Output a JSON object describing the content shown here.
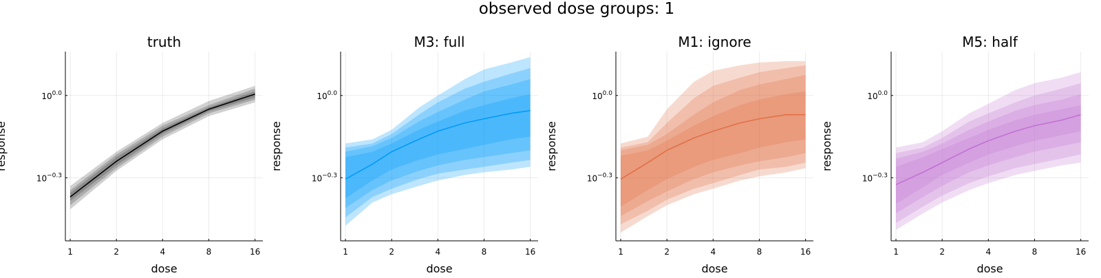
{
  "figure": {
    "suptitle": "observed dose groups: 1"
  },
  "chart_data": [
    {
      "type": "area",
      "title": "truth",
      "xlabel": "dose",
      "ylabel": "response",
      "xscale": "log2",
      "yscale": "log10",
      "x_ticks": [
        1,
        2,
        4,
        8,
        16
      ],
      "x_tick_labels": [
        "1",
        "2",
        "4",
        "8",
        "16"
      ],
      "y_ticks": [
        -0.3,
        0.0
      ],
      "y_tick_labels": [
        {
          "base": "10",
          "exp": "−0.3"
        },
        {
          "base": "10",
          "exp": "0.0"
        }
      ],
      "xlim": [
        0.93,
        18
      ],
      "ylim_log10": [
        -0.53,
        0.16
      ],
      "color": "#000000",
      "band_opacity": 0.18,
      "x": [
        1,
        2,
        4,
        8,
        16
      ],
      "median_log10": [
        -0.37,
        -0.24,
        -0.13,
        -0.05,
        0.005
      ],
      "bands_log10": [
        {
          "lower": [
            -0.415,
            -0.275,
            -0.16,
            -0.075,
            -0.025
          ],
          "upper": [
            -0.33,
            -0.205,
            -0.1,
            -0.02,
            0.035
          ]
        },
        {
          "lower": [
            -0.4,
            -0.265,
            -0.15,
            -0.065,
            -0.015
          ],
          "upper": [
            -0.345,
            -0.215,
            -0.11,
            -0.035,
            0.025
          ]
        },
        {
          "lower": [
            -0.385,
            -0.255,
            -0.14,
            -0.058,
            -0.007
          ],
          "upper": [
            -0.355,
            -0.225,
            -0.12,
            -0.043,
            0.015
          ]
        }
      ]
    },
    {
      "type": "area",
      "title": "M3: full",
      "xlabel": "dose",
      "ylabel": "response",
      "xscale": "log2",
      "yscale": "log10",
      "x_ticks": [
        1,
        2,
        4,
        8,
        16
      ],
      "x_tick_labels": [
        "1",
        "2",
        "4",
        "8",
        "16"
      ],
      "y_ticks": [
        -0.3,
        0.0
      ],
      "y_tick_labels": [
        {
          "base": "10",
          "exp": "−0.3"
        },
        {
          "base": "10",
          "exp": "0.0"
        }
      ],
      "xlim": [
        0.93,
        18
      ],
      "ylim_log10": [
        -0.53,
        0.16
      ],
      "color": "#009afa",
      "band_opacity": 0.26,
      "x": [
        1,
        1.5,
        2,
        3,
        4,
        6,
        8,
        12,
        16
      ],
      "median_log10": [
        -0.305,
        -0.25,
        -0.205,
        -0.16,
        -0.13,
        -0.1,
        -0.085,
        -0.065,
        -0.055
      ],
      "bands_log10": [
        {
          "lower": [
            -0.475,
            -0.39,
            -0.36,
            -0.33,
            -0.31,
            -0.29,
            -0.28,
            -0.27,
            -0.26
          ],
          "upper": [
            -0.175,
            -0.16,
            -0.125,
            -0.045,
            0.0,
            0.06,
            0.095,
            0.12,
            0.14
          ]
        },
        {
          "lower": [
            -0.445,
            -0.37,
            -0.34,
            -0.305,
            -0.285,
            -0.27,
            -0.26,
            -0.245,
            -0.235
          ],
          "upper": [
            -0.19,
            -0.175,
            -0.14,
            -0.07,
            -0.025,
            0.025,
            0.05,
            0.08,
            0.1
          ]
        },
        {
          "lower": [
            -0.41,
            -0.345,
            -0.31,
            -0.275,
            -0.255,
            -0.235,
            -0.225,
            -0.21,
            -0.2
          ],
          "upper": [
            -0.205,
            -0.185,
            -0.155,
            -0.095,
            -0.06,
            -0.015,
            0.015,
            0.04,
            0.06
          ]
        },
        {
          "lower": [
            -0.375,
            -0.31,
            -0.27,
            -0.235,
            -0.215,
            -0.195,
            -0.18,
            -0.16,
            -0.15
          ],
          "upper": [
            -0.225,
            -0.205,
            -0.175,
            -0.125,
            -0.095,
            -0.055,
            -0.035,
            -0.01,
            0.005
          ]
        }
      ]
    },
    {
      "type": "area",
      "title": "M1: ignore",
      "xlabel": "dose",
      "ylabel": "response",
      "xscale": "log2",
      "yscale": "log10",
      "x_ticks": [
        1,
        2,
        4,
        8,
        16
      ],
      "x_tick_labels": [
        "1",
        "2",
        "4",
        "8",
        "16"
      ],
      "y_ticks": [
        -0.3,
        0.0
      ],
      "y_tick_labels": [
        {
          "base": "10",
          "exp": "−0.3"
        },
        {
          "base": "10",
          "exp": "0.0"
        }
      ],
      "xlim": [
        0.93,
        18
      ],
      "ylim_log10": [
        -0.53,
        0.16
      ],
      "color": "#e26f46",
      "band_opacity": 0.26,
      "x": [
        1,
        1.5,
        2,
        3,
        4,
        6,
        8,
        12,
        16
      ],
      "median_log10": [
        -0.305,
        -0.245,
        -0.2,
        -0.155,
        -0.13,
        -0.1,
        -0.085,
        -0.07,
        -0.07
      ],
      "bands_log10": [
        {
          "lower": [
            -0.5,
            -0.44,
            -0.4,
            -0.36,
            -0.34,
            -0.31,
            -0.295,
            -0.28,
            -0.265
          ],
          "upper": [
            -0.175,
            -0.15,
            -0.05,
            0.05,
            0.09,
            0.11,
            0.12,
            0.125,
            0.125
          ]
        },
        {
          "lower": [
            -0.47,
            -0.42,
            -0.38,
            -0.34,
            -0.32,
            -0.29,
            -0.27,
            -0.26,
            -0.245
          ],
          "upper": [
            -0.19,
            -0.17,
            -0.1,
            -0.01,
            0.035,
            0.065,
            0.085,
            0.1,
            0.11
          ]
        },
        {
          "lower": [
            -0.44,
            -0.385,
            -0.35,
            -0.305,
            -0.28,
            -0.255,
            -0.24,
            -0.225,
            -0.21
          ],
          "upper": [
            -0.2,
            -0.18,
            -0.14,
            -0.07,
            -0.025,
            0.02,
            0.04,
            0.06,
            0.075
          ]
        },
        {
          "lower": [
            -0.405,
            -0.345,
            -0.305,
            -0.26,
            -0.235,
            -0.21,
            -0.19,
            -0.17,
            -0.16
          ],
          "upper": [
            -0.22,
            -0.2,
            -0.165,
            -0.11,
            -0.075,
            -0.035,
            -0.015,
            0.005,
            0.015
          ]
        }
      ]
    },
    {
      "type": "area",
      "title": "M5: half",
      "xlabel": "dose",
      "ylabel": "response",
      "xscale": "log2",
      "yscale": "log10",
      "x_ticks": [
        1,
        2,
        4,
        8,
        16
      ],
      "x_tick_labels": [
        "1",
        "2",
        "4",
        "8",
        "16"
      ],
      "y_ticks": [
        -0.3,
        0.0
      ],
      "y_tick_labels": [
        {
          "base": "10",
          "exp": "−0.3"
        },
        {
          "base": "10",
          "exp": "0.0"
        }
      ],
      "xlim": [
        0.93,
        18
      ],
      "ylim_log10": [
        -0.53,
        0.16
      ],
      "color": "#c271d2",
      "band_opacity": 0.24,
      "x": [
        1,
        1.5,
        2,
        3,
        4,
        6,
        8,
        12,
        16
      ],
      "median_log10": [
        -0.325,
        -0.28,
        -0.245,
        -0.195,
        -0.165,
        -0.13,
        -0.11,
        -0.09,
        -0.07
      ],
      "bands_log10": [
        {
          "lower": [
            -0.49,
            -0.43,
            -0.39,
            -0.345,
            -0.32,
            -0.29,
            -0.275,
            -0.255,
            -0.245
          ],
          "upper": [
            -0.19,
            -0.17,
            -0.13,
            -0.065,
            -0.03,
            0.02,
            0.045,
            0.065,
            0.085
          ]
        },
        {
          "lower": [
            -0.465,
            -0.405,
            -0.365,
            -0.32,
            -0.295,
            -0.265,
            -0.25,
            -0.23,
            -0.215
          ],
          "upper": [
            -0.21,
            -0.19,
            -0.155,
            -0.095,
            -0.065,
            -0.025,
            0.0,
            0.025,
            0.045
          ]
        },
        {
          "lower": [
            -0.43,
            -0.37,
            -0.33,
            -0.28,
            -0.255,
            -0.225,
            -0.205,
            -0.185,
            -0.17
          ],
          "upper": [
            -0.23,
            -0.205,
            -0.175,
            -0.125,
            -0.095,
            -0.055,
            -0.035,
            -0.015,
            0.005
          ]
        },
        {
          "lower": [
            -0.395,
            -0.335,
            -0.29,
            -0.245,
            -0.215,
            -0.185,
            -0.165,
            -0.145,
            -0.13
          ],
          "upper": [
            -0.26,
            -0.225,
            -0.195,
            -0.155,
            -0.125,
            -0.09,
            -0.07,
            -0.05,
            -0.035
          ]
        }
      ]
    }
  ]
}
